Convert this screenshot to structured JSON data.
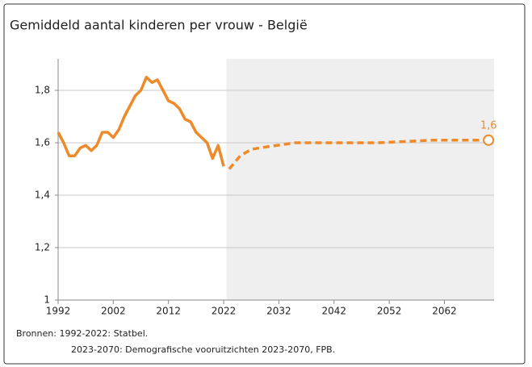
{
  "chart_data": {
    "type": "line",
    "title": "Gemiddeld aantal kinderen per vrouw - België",
    "series": [
      {
        "color": "#ef8a2b",
        "dashed": false,
        "x": [
          1992,
          1993,
          1994,
          1995,
          1996,
          1997,
          1998,
          1999,
          2000,
          2001,
          2002,
          2003,
          2004,
          2005,
          2006,
          2007,
          2008,
          2009,
          2010,
          2011,
          2012,
          2013,
          2014,
          2015,
          2016,
          2017,
          2018,
          2019,
          2020,
          2021,
          2022
        ],
        "values": [
          1.64,
          1.6,
          1.55,
          1.55,
          1.58,
          1.59,
          1.57,
          1.59,
          1.64,
          1.64,
          1.62,
          1.65,
          1.7,
          1.74,
          1.78,
          1.8,
          1.85,
          1.83,
          1.84,
          1.8,
          1.76,
          1.75,
          1.73,
          1.69,
          1.68,
          1.64,
          1.62,
          1.6,
          1.54,
          1.59,
          1.51
        ]
      },
      {
        "color": "#ef8a2b",
        "dashed": true,
        "x": [
          2023,
          2025,
          2027,
          2030,
          2035,
          2040,
          2045,
          2050,
          2055,
          2060,
          2065,
          2070
        ],
        "values": [
          1.5,
          1.55,
          1.575,
          1.585,
          1.6,
          1.6,
          1.6,
          1.6,
          1.605,
          1.61,
          1.61,
          1.61
        ],
        "value_labels": [
          null,
          null,
          null,
          null,
          null,
          null,
          null,
          null,
          null,
          null,
          null,
          "1,6"
        ]
      }
    ],
    "xlim": [
      1992,
      2071
    ],
    "xticks": [
      1992,
      2002,
      2012,
      2022,
      2032,
      2042,
      2052,
      2062
    ],
    "ylim": [
      1,
      1.92
    ],
    "yticks": [
      1,
      {
        "value": 1.2,
        "label": "1,2"
      },
      {
        "value": 1.4,
        "label": "1,4"
      },
      {
        "value": 1.6,
        "label": "1,6"
      },
      {
        "value": 1.8,
        "label": "1,8"
      }
    ],
    "grid": true,
    "shaded_from": 2022.5,
    "sources": [
      "Bronnen: 1992-2022: Statbel.",
      "2023-2070: Demografische vooruitzichten 2023-2070, FPB."
    ]
  }
}
